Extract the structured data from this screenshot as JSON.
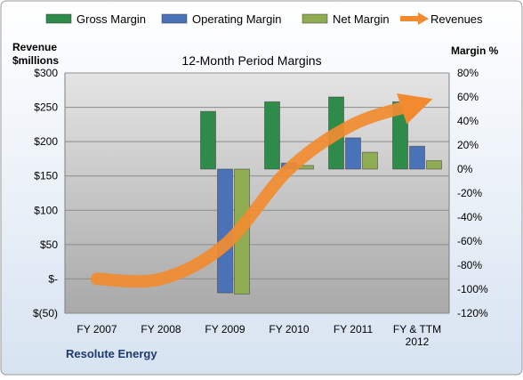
{
  "chart_data": {
    "type": "bar",
    "title": "12-Month Period Margins",
    "footer": "Resolute Energy",
    "categories": [
      "FY 2007",
      "FY 2008",
      "FY 2009",
      "FY 2010",
      "FY 2011",
      "FY & TTM\n2012"
    ],
    "left_axis": {
      "label_lines": [
        "Revenue",
        "$millions"
      ],
      "ticks": [
        {
          "v": 300,
          "t": "$300"
        },
        {
          "v": 250,
          "t": "$250"
        },
        {
          "v": 200,
          "t": "$200"
        },
        {
          "v": 150,
          "t": "$150"
        },
        {
          "v": 100,
          "t": "$100"
        },
        {
          "v": 50,
          "t": "$50"
        },
        {
          "v": 0,
          "t": "$-"
        },
        {
          "v": -50,
          "t": "$(50)"
        }
      ],
      "ylim": [
        -50,
        300
      ]
    },
    "right_axis": {
      "label": "Margin %",
      "ticks": [
        {
          "v": 80,
          "t": "80%"
        },
        {
          "v": 60,
          "t": "60%"
        },
        {
          "v": 40,
          "t": "40%"
        },
        {
          "v": 20,
          "t": "20%"
        },
        {
          "v": 0,
          "t": "0%"
        },
        {
          "v": -20,
          "t": "-20%"
        },
        {
          "v": -40,
          "t": "-40%"
        },
        {
          "v": -60,
          "t": "-60%"
        },
        {
          "v": -80,
          "t": "-80%"
        },
        {
          "v": -100,
          "t": "-100%"
        },
        {
          "v": -120,
          "t": "-120%"
        }
      ],
      "ylim": [
        -120,
        80
      ]
    },
    "series": [
      {
        "name": "Gross Margin",
        "axis": "right",
        "kind": "bar",
        "color": "#2e8b4a",
        "values": [
          null,
          null,
          48,
          56,
          60,
          56
        ]
      },
      {
        "name": "Operating Margin",
        "axis": "right",
        "kind": "bar",
        "color": "#4a72b8",
        "values": [
          null,
          null,
          -103,
          5,
          26,
          19
        ]
      },
      {
        "name": "Net Margin",
        "axis": "right",
        "kind": "bar",
        "color": "#8fac52",
        "values": [
          null,
          null,
          -104,
          3,
          14,
          7
        ]
      },
      {
        "name": "Revenues",
        "axis": "left",
        "kind": "line",
        "color": "#f28b30",
        "values": [
          0,
          0,
          50,
          160,
          225,
          255
        ]
      }
    ],
    "legend_position": "top",
    "grid": true
  }
}
